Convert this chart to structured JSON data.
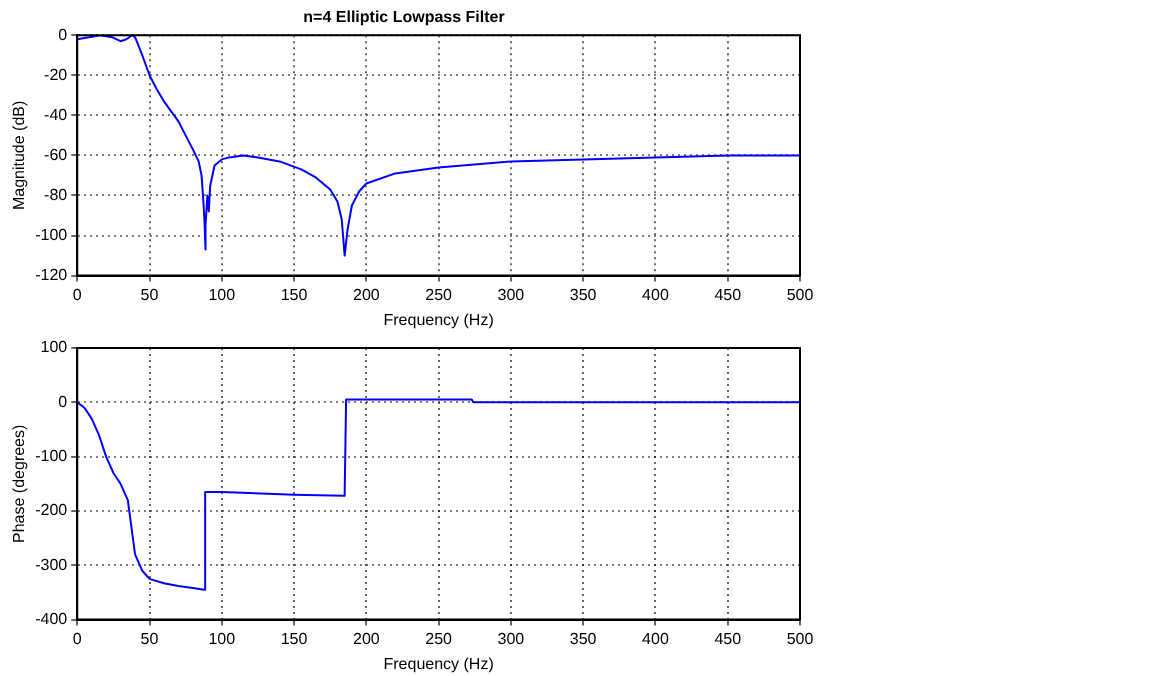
{
  "chart_data": [
    {
      "type": "line",
      "title": "n=4 Elliptic Lowpass Filter",
      "xlabel": "Frequency (Hz)",
      "ylabel": "Magnitude (dB)",
      "xlim": [
        0,
        500
      ],
      "ylim": [
        -120,
        0
      ],
      "xticks": [
        0,
        50,
        100,
        150,
        200,
        250,
        300,
        350,
        400,
        450,
        500
      ],
      "yticks": [
        -120,
        -100,
        -80,
        -60,
        -40,
        -20,
        0
      ],
      "grid": true,
      "legend": false,
      "series": [
        {
          "color": "#0000ff",
          "x": [
            0,
            8,
            16,
            24,
            30,
            34,
            38,
            40,
            45,
            50,
            55,
            60,
            65,
            70,
            75,
            80,
            84,
            86,
            87,
            88,
            88.5,
            89,
            90,
            91,
            92,
            95,
            100,
            105,
            115,
            125,
            140,
            155,
            165,
            175,
            180,
            183,
            185,
            187,
            190,
            195,
            200,
            220,
            250,
            300,
            350,
            400,
            450,
            500
          ],
          "values": [
            -2,
            -1,
            0,
            -1,
            -3,
            -2,
            0,
            -1,
            -10,
            -20,
            -27,
            -33,
            -38,
            -43,
            -50,
            -57,
            -63,
            -70,
            -80,
            -92,
            -107,
            -95,
            -80,
            -88,
            -75,
            -65,
            -62,
            -61,
            -60,
            -61,
            -63,
            -67,
            -71,
            -77,
            -83,
            -92,
            -110,
            -97,
            -85,
            -78,
            -74,
            -69,
            -66,
            -63,
            -62,
            -61,
            -60,
            -60
          ]
        }
      ]
    },
    {
      "type": "line",
      "xlabel": "Frequency (Hz)",
      "ylabel": "Phase (degrees)",
      "xlim": [
        0,
        500
      ],
      "ylim": [
        -400,
        100
      ],
      "xticks": [
        0,
        50,
        100,
        150,
        200,
        250,
        300,
        350,
        400,
        450,
        500
      ],
      "yticks": [
        -400,
        -300,
        -200,
        -100,
        0,
        100
      ],
      "grid": true,
      "legend": false,
      "series": [
        {
          "color": "#0000ff",
          "x": [
            0,
            5,
            10,
            15,
            20,
            25,
            30,
            35,
            38,
            40,
            45,
            50,
            60,
            70,
            80,
            88,
            88.5,
            100,
            150,
            185,
            186,
            200,
            250,
            273,
            274,
            500
          ],
          "values": [
            0,
            -10,
            -30,
            -60,
            -100,
            -130,
            -150,
            -180,
            -240,
            -280,
            -310,
            -325,
            -333,
            -338,
            -342,
            -345,
            -165,
            -165,
            -170,
            -172,
            5,
            5,
            5,
            5,
            0,
            0
          ]
        }
      ]
    }
  ]
}
